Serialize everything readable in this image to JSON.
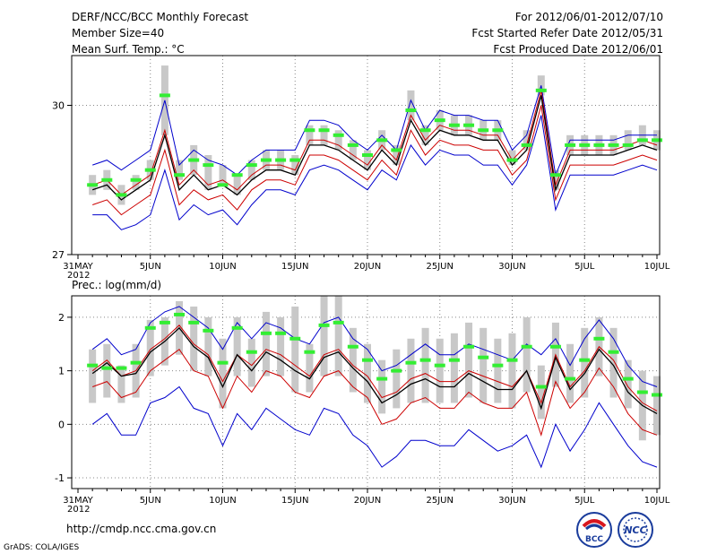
{
  "header": {
    "left_lines": [
      "DERF/NCC/BCC Monthly Forecast",
      "Member Size=40",
      "Mean Surf. Temp.: °C"
    ],
    "right_lines": [
      "For 2012/06/01-2012/07/10",
      "Fcst Started Refer Date 2012/05/31",
      "Fcst Produced Date 2012/06/01"
    ]
  },
  "footer": {
    "url": "http://cmdp.ncc.cma.gov.cn",
    "credit": "GrADS: COLA/IGES"
  },
  "logos": {
    "bcc": "BCC",
    "ncc": "NCC"
  },
  "colors": {
    "envelope": "#0000cc",
    "spread": "#cc0000",
    "mean": "#000000",
    "obs": "#33ee33",
    "box": "#c8c8c8",
    "grid": "#888888"
  },
  "chart_data": [
    {
      "type": "line",
      "title": "Mean Surf. Temp.: °C",
      "ylim": [
        27,
        31
      ],
      "yticks": [
        27,
        30
      ],
      "x_tick_labels": [
        {
          "day": 0,
          "label": "31MAY",
          "sub": "2012"
        },
        {
          "day": 5,
          "label": "5JUN"
        },
        {
          "day": 10,
          "label": "10JUN"
        },
        {
          "day": 15,
          "label": "15JUN"
        },
        {
          "day": 20,
          "label": "20JUN"
        },
        {
          "day": 25,
          "label": "25JUN"
        },
        {
          "day": 30,
          "label": "30JUN"
        },
        {
          "day": 35,
          "label": "5JUL"
        },
        {
          "day": 40,
          "label": "10JUL"
        }
      ],
      "days": [
        1,
        2,
        3,
        4,
        5,
        6,
        7,
        8,
        9,
        10,
        11,
        12,
        13,
        14,
        15,
        16,
        17,
        18,
        19,
        20,
        21,
        22,
        23,
        24,
        25,
        26,
        27,
        28,
        29,
        30,
        31,
        32,
        33,
        34,
        35,
        36,
        37,
        38,
        39,
        40
      ],
      "series": [
        {
          "name": "upper",
          "values": [
            28.8,
            28.9,
            28.7,
            28.9,
            29.1,
            30.1,
            28.8,
            29.1,
            28.9,
            28.8,
            28.6,
            28.9,
            29.1,
            29.1,
            29.1,
            29.7,
            29.7,
            29.6,
            29.3,
            29.1,
            29.4,
            29.1,
            30.1,
            29.5,
            29.9,
            29.8,
            29.8,
            29.7,
            29.7,
            29.1,
            29.4,
            30.4,
            28.6,
            29.3,
            29.3,
            29.3,
            29.3,
            29.4,
            29.4,
            29.4
          ]
        },
        {
          "name": "spread_high",
          "values": [
            28.4,
            28.5,
            28.2,
            28.4,
            28.6,
            29.5,
            28.4,
            28.7,
            28.4,
            28.5,
            28.3,
            28.6,
            28.8,
            28.8,
            28.7,
            29.3,
            29.3,
            29.2,
            29.0,
            28.8,
            29.2,
            28.9,
            29.8,
            29.3,
            29.6,
            29.5,
            29.5,
            29.4,
            29.4,
            28.9,
            29.2,
            30.3,
            28.4,
            29.1,
            29.1,
            29.1,
            29.1,
            29.2,
            29.3,
            29.2
          ]
        },
        {
          "name": "mean",
          "values": [
            28.3,
            28.4,
            28.1,
            28.3,
            28.5,
            29.4,
            28.3,
            28.6,
            28.3,
            28.4,
            28.2,
            28.5,
            28.7,
            28.7,
            28.6,
            29.2,
            29.2,
            29.1,
            28.9,
            28.7,
            29.1,
            28.8,
            29.7,
            29.2,
            29.5,
            29.4,
            29.4,
            29.3,
            29.3,
            28.8,
            29.1,
            30.2,
            28.3,
            29.0,
            29.0,
            29.0,
            29.0,
            29.1,
            29.2,
            29.1
          ]
        },
        {
          "name": "spread_low",
          "values": [
            28.0,
            28.1,
            27.8,
            28.0,
            28.2,
            29.1,
            28.0,
            28.3,
            28.1,
            28.2,
            27.9,
            28.3,
            28.5,
            28.5,
            28.4,
            29.0,
            29.0,
            28.9,
            28.7,
            28.5,
            28.9,
            28.6,
            29.5,
            29.0,
            29.3,
            29.2,
            29.2,
            29.1,
            29.1,
            28.6,
            28.9,
            30.0,
            28.1,
            28.8,
            28.8,
            28.8,
            28.8,
            28.9,
            29.0,
            28.9
          ]
        },
        {
          "name": "lower",
          "values": [
            27.8,
            27.8,
            27.5,
            27.6,
            27.8,
            28.7,
            27.7,
            28.0,
            27.8,
            27.9,
            27.6,
            28.0,
            28.3,
            28.3,
            28.2,
            28.7,
            28.8,
            28.7,
            28.5,
            28.3,
            28.7,
            28.5,
            29.2,
            28.8,
            29.1,
            29.0,
            29.0,
            28.8,
            28.8,
            28.4,
            28.8,
            29.8,
            27.9,
            28.6,
            28.6,
            28.6,
            28.6,
            28.7,
            28.8,
            28.7
          ]
        }
      ],
      "obs": [
        28.4,
        28.5,
        28.2,
        28.5,
        28.7,
        30.2,
        28.6,
        28.9,
        28.8,
        28.4,
        28.6,
        28.8,
        28.9,
        28.9,
        28.9,
        29.5,
        29.5,
        29.4,
        29.2,
        29.0,
        29.3,
        29.1,
        29.9,
        29.5,
        29.7,
        29.6,
        29.6,
        29.5,
        29.5,
        28.9,
        29.2,
        30.3,
        28.6,
        29.2,
        29.2,
        29.2,
        29.2,
        29.2,
        29.3,
        29.3
      ],
      "boxes": [
        [
          28.2,
          28.6
        ],
        [
          28.3,
          28.7
        ],
        [
          28.0,
          28.4
        ],
        [
          28.3,
          28.6
        ],
        [
          28.5,
          28.9
        ],
        [
          29.4,
          30.8
        ],
        [
          28.5,
          28.9
        ],
        [
          28.6,
          29.2
        ],
        [
          28.3,
          29.0
        ],
        [
          28.4,
          28.8
        ],
        [
          28.2,
          28.6
        ],
        [
          28.5,
          28.9
        ],
        [
          28.7,
          29.1
        ],
        [
          28.7,
          29.1
        ],
        [
          28.6,
          29.0
        ],
        [
          29.2,
          29.6
        ],
        [
          29.2,
          29.6
        ],
        [
          29.1,
          29.5
        ],
        [
          28.9,
          29.3
        ],
        [
          28.7,
          29.1
        ],
        [
          29.1,
          29.5
        ],
        [
          28.8,
          29.2
        ],
        [
          29.7,
          30.3
        ],
        [
          29.2,
          29.6
        ],
        [
          29.5,
          29.9
        ],
        [
          29.4,
          29.8
        ],
        [
          29.4,
          29.8
        ],
        [
          29.3,
          29.7
        ],
        [
          29.3,
          29.7
        ],
        [
          28.8,
          29.1
        ],
        [
          29.1,
          29.5
        ],
        [
          30.2,
          30.6
        ],
        [
          28.3,
          28.7
        ],
        [
          29.0,
          29.4
        ],
        [
          29.0,
          29.4
        ],
        [
          29.0,
          29.4
        ],
        [
          29.0,
          29.4
        ],
        [
          29.1,
          29.5
        ],
        [
          29.2,
          29.6
        ],
        [
          29.1,
          29.5
        ]
      ]
    },
    {
      "type": "line",
      "title": "Prec.: log(mm/d)",
      "ylim": [
        -1.2,
        2.4
      ],
      "yticks": [
        -1,
        0,
        1,
        2
      ],
      "x_tick_labels": [
        {
          "day": 0,
          "label": "31MAY",
          "sub": "2012"
        },
        {
          "day": 5,
          "label": "5JUN"
        },
        {
          "day": 10,
          "label": "10JUN"
        },
        {
          "day": 15,
          "label": "15JUN"
        },
        {
          "day": 20,
          "label": "20JUN"
        },
        {
          "day": 25,
          "label": "25JUN"
        },
        {
          "day": 30,
          "label": "30JUN"
        },
        {
          "day": 35,
          "label": "5JUL"
        },
        {
          "day": 40,
          "label": "10JUL"
        }
      ],
      "days": [
        1,
        2,
        3,
        4,
        5,
        6,
        7,
        8,
        9,
        10,
        11,
        12,
        13,
        14,
        15,
        16,
        17,
        18,
        19,
        20,
        21,
        22,
        23,
        24,
        25,
        26,
        27,
        28,
        29,
        30,
        31,
        32,
        33,
        34,
        35,
        36,
        37,
        38,
        39,
        40
      ],
      "series": [
        {
          "name": "upper",
          "values": [
            1.4,
            1.6,
            1.3,
            1.4,
            1.9,
            2.1,
            2.2,
            2.0,
            1.8,
            1.4,
            1.9,
            1.6,
            1.9,
            1.8,
            1.6,
            1.5,
            1.9,
            2.0,
            1.6,
            1.4,
            1.0,
            1.1,
            1.3,
            1.5,
            1.3,
            1.3,
            1.5,
            1.4,
            1.3,
            1.2,
            1.5,
            1.3,
            1.6,
            1.1,
            1.6,
            1.95,
            1.6,
            1.1,
            0.8,
            0.7
          ]
        },
        {
          "name": "mean_upper",
          "values": [
            1.0,
            1.2,
            0.9,
            1.0,
            1.4,
            1.6,
            1.85,
            1.5,
            1.3,
            0.8,
            1.3,
            1.1,
            1.4,
            1.3,
            1.1,
            0.9,
            1.3,
            1.4,
            1.1,
            0.9,
            0.5,
            0.6,
            0.85,
            0.95,
            0.8,
            0.8,
            1.0,
            0.9,
            0.8,
            0.7,
            1.0,
            0.4,
            1.3,
            0.7,
            1.0,
            1.45,
            1.2,
            0.7,
            0.4,
            0.25
          ]
        },
        {
          "name": "mean",
          "values": [
            0.95,
            1.15,
            0.9,
            0.95,
            1.35,
            1.55,
            1.8,
            1.45,
            1.25,
            0.7,
            1.3,
            1.0,
            1.35,
            1.2,
            1.0,
            0.85,
            1.25,
            1.35,
            1.05,
            0.8,
            0.4,
            0.55,
            0.75,
            0.85,
            0.7,
            0.7,
            0.95,
            0.8,
            0.65,
            0.65,
            1.0,
            0.3,
            1.25,
            0.65,
            0.95,
            1.4,
            1.1,
            0.6,
            0.35,
            0.2
          ]
        },
        {
          "name": "spread_low",
          "values": [
            0.7,
            0.8,
            0.5,
            0.6,
            1.0,
            1.2,
            1.4,
            1.0,
            0.9,
            0.3,
            0.9,
            0.6,
            1.0,
            0.9,
            0.6,
            0.5,
            0.9,
            1.0,
            0.7,
            0.5,
            0.0,
            0.1,
            0.4,
            0.5,
            0.3,
            0.3,
            0.6,
            0.4,
            0.3,
            0.3,
            0.6,
            -0.2,
            0.8,
            0.3,
            0.6,
            1.05,
            0.7,
            0.2,
            -0.1,
            -0.2
          ]
        },
        {
          "name": "lower",
          "values": [
            0.0,
            0.2,
            -0.2,
            -0.2,
            0.4,
            0.5,
            0.7,
            0.3,
            0.2,
            -0.4,
            0.2,
            -0.1,
            0.3,
            0.1,
            -0.1,
            -0.2,
            0.3,
            0.2,
            -0.2,
            -0.4,
            -0.8,
            -0.6,
            -0.3,
            -0.3,
            -0.4,
            -0.4,
            -0.1,
            -0.3,
            -0.5,
            -0.4,
            -0.2,
            -0.8,
            0.0,
            -0.5,
            -0.1,
            0.4,
            0.0,
            -0.4,
            -0.7,
            -0.8
          ]
        }
      ],
      "obs": [
        1.1,
        1.05,
        1.05,
        1.15,
        1.8,
        1.9,
        2.05,
        1.9,
        1.75,
        1.15,
        1.8,
        1.35,
        1.7,
        1.7,
        1.6,
        1.35,
        1.85,
        1.9,
        1.45,
        1.2,
        0.85,
        1.0,
        1.15,
        1.2,
        1.1,
        1.2,
        1.45,
        1.25,
        1.1,
        1.2,
        1.45,
        0.7,
        1.45,
        0.85,
        1.2,
        1.6,
        1.35,
        0.85,
        0.6,
        0.55
      ],
      "boxes": [
        [
          0.4,
          1.4
        ],
        [
          0.5,
          1.5
        ],
        [
          0.4,
          1.1
        ],
        [
          0.5,
          1.5
        ],
        [
          0.9,
          1.95
        ],
        [
          1.1,
          2.0
        ],
        [
          1.3,
          2.3
        ],
        [
          1.0,
          2.2
        ],
        [
          0.9,
          2.0
        ],
        [
          0.3,
          1.6
        ],
        [
          0.9,
          2.0
        ],
        [
          0.7,
          1.6
        ],
        [
          0.9,
          2.1
        ],
        [
          0.9,
          2.0
        ],
        [
          0.6,
          2.2
        ],
        [
          0.6,
          1.5
        ],
        [
          0.9,
          2.4
        ],
        [
          0.9,
          2.4
        ],
        [
          0.6,
          1.8
        ],
        [
          0.4,
          1.5
        ],
        [
          0.2,
          1.2
        ],
        [
          0.3,
          1.4
        ],
        [
          0.4,
          1.6
        ],
        [
          0.4,
          1.8
        ],
        [
          0.4,
          1.6
        ],
        [
          0.4,
          1.7
        ],
        [
          0.5,
          1.9
        ],
        [
          0.4,
          1.8
        ],
        [
          0.4,
          1.6
        ],
        [
          0.3,
          1.7
        ],
        [
          0.6,
          2.0
        ],
        [
          0.1,
          1.1
        ],
        [
          0.7,
          1.9
        ],
        [
          0.4,
          1.5
        ],
        [
          0.5,
          1.8
        ],
        [
          0.9,
          2.0
        ],
        [
          0.5,
          1.8
        ],
        [
          0.3,
          1.2
        ],
        [
          -0.3,
          1.0
        ],
        [
          -0.2,
          0.9
        ]
      ]
    }
  ]
}
